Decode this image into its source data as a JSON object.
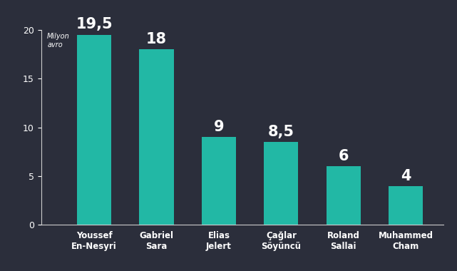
{
  "chart_data": {
    "type": "bar",
    "y_label": "Milyon\navro",
    "categories": [
      "Youssef\nEn-Nesyri",
      "Gabriel\nSara",
      "Elias\nJelert",
      "Çağlar\nSöyüncü",
      "Roland\nSallai",
      "Muhammed\nCham"
    ],
    "values": [
      19.5,
      18,
      9,
      8.5,
      6,
      4
    ],
    "value_labels": [
      "19,5",
      "18",
      "9",
      "8,5",
      "6",
      "4"
    ],
    "data_labels": true,
    "color": "#22b8a5",
    "ylim": [
      0,
      20
    ],
    "yticks": [
      0,
      5,
      10,
      15,
      20
    ],
    "grid": false
  }
}
